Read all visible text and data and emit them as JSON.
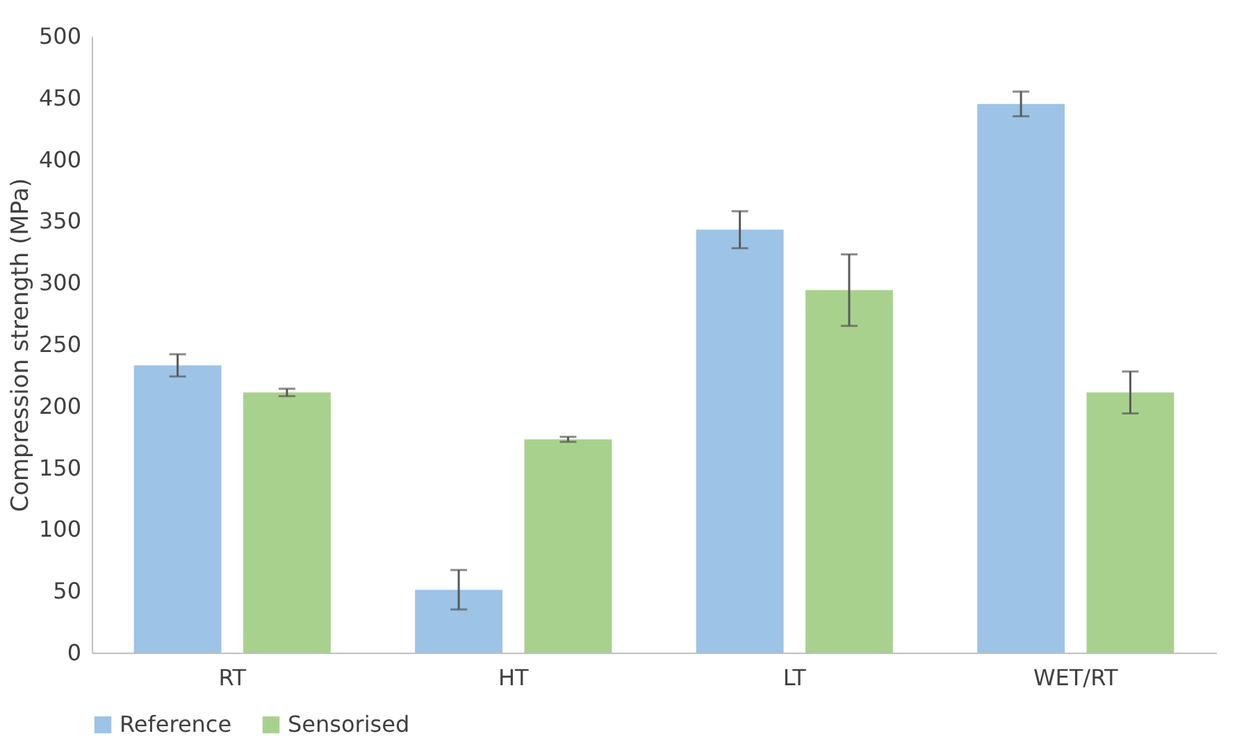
{
  "chart_data": {
    "type": "bar",
    "ylabel": "Compression strength (MPa)",
    "categories": [
      "RT",
      "HT",
      "LT",
      "WET/RT"
    ],
    "series": [
      {
        "name": "Reference",
        "color": "#9dc3e6",
        "values": [
          233,
          51,
          343,
          445
        ],
        "errors": [
          9,
          16,
          15,
          10
        ]
      },
      {
        "name": "Sensorised",
        "color": "#a9d18e",
        "values": [
          211,
          173,
          294,
          211
        ],
        "errors": [
          3,
          2,
          29,
          17
        ]
      }
    ],
    "ylim": [
      0,
      500
    ],
    "yticks": [
      0,
      50,
      100,
      150,
      200,
      250,
      300,
      350,
      400,
      450,
      500
    ],
    "grid": false,
    "legend": "bottom"
  }
}
